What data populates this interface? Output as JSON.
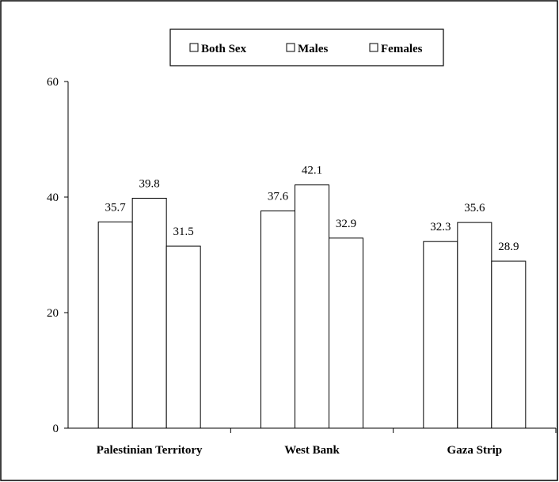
{
  "chart_data": {
    "type": "bar",
    "categories": [
      "Palestinian Territory",
      "West Bank",
      "Gaza Strip"
    ],
    "series": [
      {
        "name": "Both Sex",
        "values": [
          35.7,
          37.6,
          32.3
        ]
      },
      {
        "name": "Males",
        "values": [
          39.8,
          42.1,
          35.6
        ]
      },
      {
        "name": "Females",
        "values": [
          31.5,
          32.9,
          28.9
        ]
      }
    ],
    "ylim": [
      0,
      60
    ],
    "yticks": [
      0,
      20,
      40,
      60
    ],
    "legend_position": "top",
    "grid": false,
    "colors": {
      "bar_fill": "#ffffff",
      "bar_stroke": "#000000"
    }
  }
}
